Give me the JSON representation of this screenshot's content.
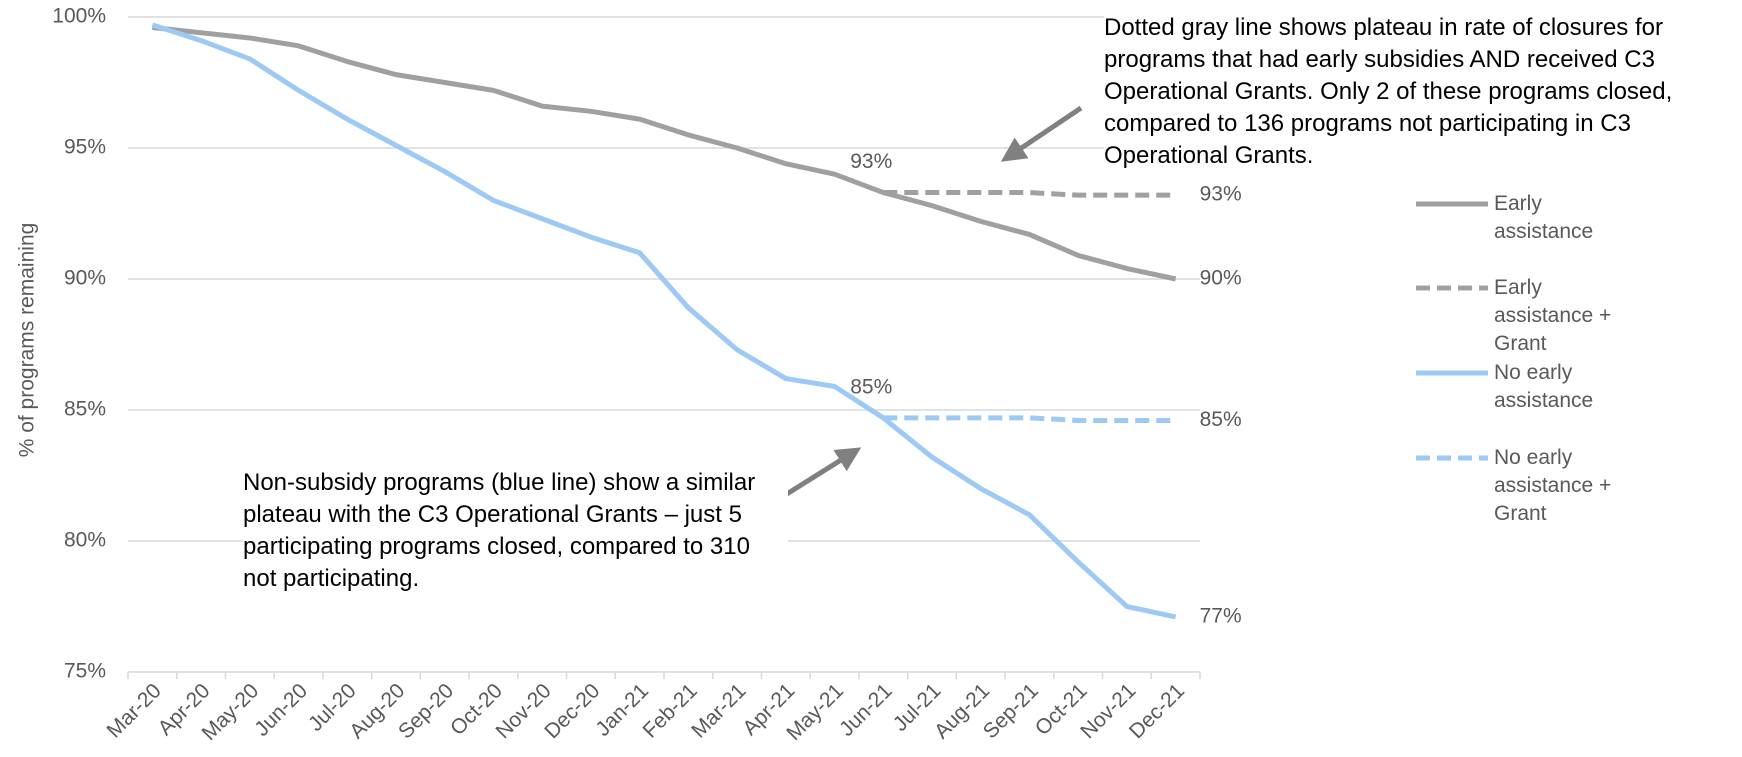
{
  "chart_data": {
    "type": "line",
    "y_axis_label": "% of programs remaining",
    "categories": [
      "Mar-20",
      "Apr-20",
      "May-20",
      "Jun-20",
      "Jul-20",
      "Aug-20",
      "Sep-20",
      "Oct-20",
      "Nov-20",
      "Dec-20",
      "Jan-21",
      "Feb-21",
      "Mar-21",
      "Apr-21",
      "May-21",
      "Jun-21",
      "Jul-21",
      "Aug-21",
      "Sep-21",
      "Oct-21",
      "Nov-21",
      "Dec-21"
    ],
    "series": [
      {
        "name": "Early assistance",
        "color": "#a0a0a0",
        "style": "solid",
        "values": [
          99.6,
          99.4,
          99.2,
          98.9,
          98.3,
          97.8,
          97.5,
          97.2,
          96.6,
          96.4,
          96.1,
          95.5,
          95.0,
          94.4,
          94.0,
          93.3,
          92.8,
          92.2,
          91.7,
          90.9,
          90.4,
          90.0
        ],
        "value_labels": [
          null,
          null,
          null,
          null,
          null,
          null,
          null,
          null,
          null,
          null,
          null,
          null,
          null,
          null,
          null,
          "93%",
          null,
          null,
          null,
          null,
          null,
          "90%"
        ]
      },
      {
        "name": "Early assistance + Grant",
        "color": "#a0a0a0",
        "style": "dashed",
        "values": [
          null,
          null,
          null,
          null,
          null,
          null,
          null,
          null,
          null,
          null,
          null,
          null,
          null,
          null,
          null,
          93.3,
          93.3,
          93.3,
          93.3,
          93.2,
          93.2,
          93.2
        ],
        "value_labels": [
          null,
          null,
          null,
          null,
          null,
          null,
          null,
          null,
          null,
          null,
          null,
          null,
          null,
          null,
          null,
          null,
          null,
          null,
          null,
          null,
          null,
          "93%"
        ]
      },
      {
        "name": "No early assistance",
        "color": "#9dc9f5",
        "style": "solid",
        "values": [
          99.7,
          99.1,
          98.4,
          97.2,
          96.1,
          95.1,
          94.1,
          93.0,
          92.3,
          91.6,
          91.0,
          88.9,
          87.3,
          86.2,
          85.9,
          84.7,
          83.2,
          82.0,
          81.0,
          79.2,
          77.5,
          77.1
        ],
        "value_labels": [
          null,
          null,
          null,
          null,
          null,
          null,
          null,
          null,
          null,
          null,
          null,
          null,
          null,
          null,
          null,
          "85%",
          null,
          null,
          null,
          null,
          null,
          "77%"
        ]
      },
      {
        "name": "No early assistance + Grant",
        "color": "#9dc9f5",
        "style": "dashed",
        "values": [
          null,
          null,
          null,
          null,
          null,
          null,
          null,
          null,
          null,
          null,
          null,
          null,
          null,
          null,
          null,
          84.7,
          84.7,
          84.7,
          84.7,
          84.6,
          84.6,
          84.6
        ],
        "value_labels": [
          null,
          null,
          null,
          null,
          null,
          null,
          null,
          null,
          null,
          null,
          null,
          null,
          null,
          null,
          null,
          null,
          null,
          null,
          null,
          null,
          null,
          "85%"
        ]
      }
    ],
    "ylim": [
      75,
      100
    ],
    "yticks": [
      {
        "value": 75,
        "label": "75%"
      },
      {
        "value": 80,
        "label": "80%"
      },
      {
        "value": 85,
        "label": "85%"
      },
      {
        "value": 90,
        "label": "90%"
      },
      {
        "value": 95,
        "label": "95%"
      },
      {
        "value": 100,
        "label": "100%"
      }
    ],
    "grid": true,
    "legend": "right",
    "annotations": [
      "Dotted gray line shows plateau in rate of closures for programs that had early subsidies AND received C3 Operational Grants. Only 2 of these programs closed, compared to 136 programs not participating in C3 Operational Grants.",
      "Non-subsidy programs (blue line) show a similar plateau with the C3 Operational Grants – just 5 participating programs closed, compared to 310 not participating."
    ]
  }
}
